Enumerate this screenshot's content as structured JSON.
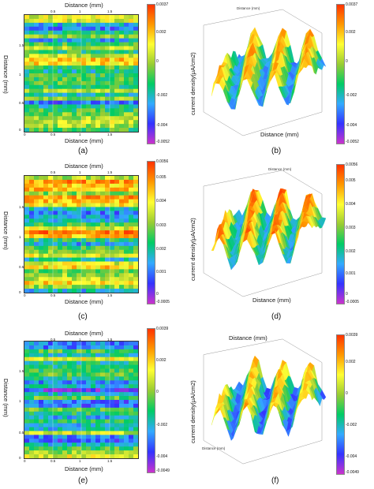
{
  "colors": {
    "scale": [
      "#cc33cc",
      "#3333ff",
      "#33aaff",
      "#00cc66",
      "#99cc33",
      "#ffff33",
      "#ff9900",
      "#ff3300"
    ]
  },
  "panels": [
    {
      "id": "a",
      "caption": "(a)",
      "map": {
        "xlabel_top": "Distance (mm)",
        "xlabel_bottom": "Distance (mm)",
        "ylabel": "Distance (mm)",
        "ticks_top": [
          "0.5",
          "1",
          "1.5"
        ],
        "ticks_bottom": [
          "0",
          "0.5",
          "1",
          "1.5"
        ],
        "ticks_y": [
          "1.5",
          "1",
          "0.5",
          "0"
        ]
      },
      "map_colorbar": {
        "ticks": [
          "0.0037",
          "0.002",
          "0",
          "-0.002",
          "-0.004",
          "-0.0052"
        ]
      }
    },
    {
      "id": "b",
      "caption": "(b)",
      "surface": {
        "xlabel": "Distance (mm)",
        "zlabel": "current density(μA/cm2)",
        "depth_label": "Distance (mm)"
      },
      "surface_colorbar": {
        "ticks": [
          "0.0037",
          "0.002",
          "0",
          "-0.002",
          "-0.004",
          "-0.0052"
        ]
      }
    },
    {
      "id": "c",
      "caption": "(c)",
      "map": {
        "xlabel_top": "Distance (mm)",
        "xlabel_bottom": "Distance (mm)",
        "ylabel": "Distance (mm)",
        "ticks_top": [
          "0.5",
          "1",
          "1.5"
        ],
        "ticks_bottom": [
          "0",
          "0.5",
          "1",
          "1.5"
        ],
        "ticks_y": [
          "1.5",
          "1",
          "0.5",
          "0"
        ]
      },
      "map_colorbar": {
        "ticks": [
          "0.0056",
          "0.005",
          "0.004",
          "0.003",
          "0.002",
          "0.001",
          "0",
          "-0.0005"
        ]
      }
    },
    {
      "id": "d",
      "caption": "(d)",
      "surface": {
        "xlabel": "Distance (mm)",
        "zlabel": "current density(μA/cm2)",
        "depth_label": "Distance (mm)"
      },
      "surface_colorbar": {
        "ticks": [
          "0.0056",
          "0.005",
          "0.004",
          "0.003",
          "0.002",
          "0.001",
          "0",
          "-0.0005"
        ]
      }
    },
    {
      "id": "e",
      "caption": "(e)",
      "map": {
        "xlabel_top": "Distance (mm)",
        "xlabel_bottom": "Distance (mm)",
        "ylabel": "Distance (mm)",
        "ticks_top": [
          "0.5",
          "1",
          "1.5"
        ],
        "ticks_bottom": [
          "0",
          "0.5",
          "1",
          "1.5"
        ],
        "ticks_y": [
          "1.5",
          "1",
          "0.5",
          "0"
        ]
      },
      "map_colorbar": {
        "ticks": [
          "0.0039",
          "0.002",
          "0",
          "-0.002",
          "-0.004",
          "-0.0049"
        ]
      }
    },
    {
      "id": "f",
      "caption": "(f)",
      "surface": {
        "xlabel": "Distance (mm)",
        "zlabel": "current density(μA/cm2)",
        "depth_label": "Distance (mm)"
      },
      "surface_colorbar": {
        "ticks": [
          "0.0039",
          "0.002",
          "0",
          "-0.002",
          "-0.004",
          "-0.0049"
        ]
      }
    }
  ],
  "chart_data": [
    {
      "type": "heatmap",
      "panel": "a",
      "xlabel": "Distance (mm)",
      "ylabel": "Distance (mm)",
      "colorbar_range": [
        -0.0052,
        0.0037
      ],
      "xlim": [
        0,
        2
      ],
      "ylim": [
        0,
        2
      ]
    },
    {
      "type": "area",
      "panel": "b",
      "xlabel": "Distance (mm)",
      "zlabel": "current density(μA/cm2)",
      "colorbar_range": [
        -0.0052,
        0.0037
      ]
    },
    {
      "type": "heatmap",
      "panel": "c",
      "xlabel": "Distance (mm)",
      "ylabel": "Distance (mm)",
      "colorbar_range": [
        -0.0005,
        0.0056
      ],
      "xlim": [
        0,
        2
      ],
      "ylim": [
        0,
        2
      ]
    },
    {
      "type": "area",
      "panel": "d",
      "xlabel": "Distance (mm)",
      "zlabel": "current density(μA/cm2)",
      "colorbar_range": [
        -0.0005,
        0.0056
      ]
    },
    {
      "type": "heatmap",
      "panel": "e",
      "xlabel": "Distance (mm)",
      "ylabel": "Distance (mm)",
      "colorbar_range": [
        -0.0049,
        0.0039
      ],
      "xlim": [
        0,
        2
      ],
      "ylim": [
        0,
        2
      ]
    },
    {
      "type": "area",
      "panel": "f",
      "xlabel": "Distance (mm)",
      "zlabel": "current density(μA/cm2)",
      "colorbar_range": [
        -0.0049,
        0.0039
      ]
    }
  ]
}
